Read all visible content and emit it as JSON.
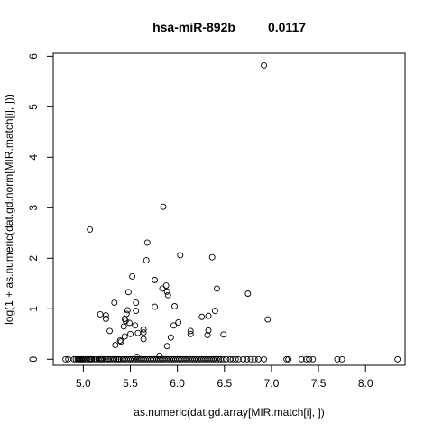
{
  "chart_data": {
    "type": "scatter",
    "title_left": "hsa-miR-892b",
    "title_right": "0.0117",
    "xlabel": "as.numeric(dat.gd.array[MIR.match[i], ])",
    "ylabel": "log(1 + as.numeric(dat.gd.norm[MIR.match[i], ]))",
    "xlim": [
      4.68,
      8.42
    ],
    "ylim": [
      -0.12,
      6.06
    ],
    "xticks": [
      5.0,
      5.5,
      6.0,
      6.5,
      7.0,
      7.5,
      8.0
    ],
    "xtick_labels": [
      "5.0",
      "5.5",
      "6.0",
      "6.5",
      "7.0",
      "7.5",
      "8.0"
    ],
    "yticks": [
      0,
      1,
      2,
      3,
      4,
      5,
      6
    ],
    "ytick_labels": [
      "0",
      "1",
      "2",
      "3",
      "4",
      "5",
      "6"
    ],
    "grid": false,
    "marker": "open-circle",
    "point_color": "#000000",
    "points_nonzero": [
      [
        6.92,
        5.82
      ],
      [
        5.07,
        2.57
      ],
      [
        5.85,
        3.02
      ],
      [
        5.68,
        2.31
      ],
      [
        6.03,
        2.06
      ],
      [
        6.37,
        2.02
      ],
      [
        5.67,
        1.96
      ],
      [
        5.52,
        1.64
      ],
      [
        5.76,
        1.57
      ],
      [
        5.88,
        1.46
      ],
      [
        5.84,
        1.4
      ],
      [
        5.89,
        1.34
      ],
      [
        5.48,
        1.33
      ],
      [
        6.42,
        1.4
      ],
      [
        6.75,
        1.3
      ],
      [
        5.9,
        1.27
      ],
      [
        5.33,
        1.12
      ],
      [
        5.56,
        1.12
      ],
      [
        5.97,
        1.05
      ],
      [
        5.76,
        1.04
      ],
      [
        5.47,
        0.97
      ],
      [
        5.56,
        0.96
      ],
      [
        6.4,
        0.96
      ],
      [
        5.18,
        0.89
      ],
      [
        5.24,
        0.87
      ],
      [
        5.46,
        0.9
      ],
      [
        6.26,
        0.84
      ],
      [
        6.33,
        0.86
      ],
      [
        5.44,
        0.8
      ],
      [
        5.24,
        0.8
      ],
      [
        6.96,
        0.79
      ],
      [
        5.45,
        0.76
      ],
      [
        5.49,
        0.72
      ],
      [
        6.01,
        0.73
      ],
      [
        5.96,
        0.67
      ],
      [
        5.55,
        0.67
      ],
      [
        5.43,
        0.65
      ],
      [
        5.64,
        0.59
      ],
      [
        6.14,
        0.56
      ],
      [
        6.33,
        0.57
      ],
      [
        5.28,
        0.56
      ],
      [
        5.64,
        0.53
      ],
      [
        5.5,
        0.5
      ],
      [
        5.58,
        0.52
      ],
      [
        6.14,
        0.5
      ],
      [
        6.49,
        0.49
      ],
      [
        6.32,
        0.48
      ],
      [
        5.44,
        0.45
      ],
      [
        5.93,
        0.43
      ],
      [
        5.64,
        0.4
      ],
      [
        5.39,
        0.37
      ],
      [
        5.4,
        0.35
      ],
      [
        5.34,
        0.28
      ],
      [
        5.89,
        0.26
      ],
      [
        5.81,
        0.07
      ],
      [
        5.57,
        0.05
      ]
    ],
    "points_zero_x": [
      4.81,
      4.84,
      4.9,
      4.92,
      4.94,
      4.95,
      4.96,
      4.97,
      4.98,
      4.99,
      5.0,
      5.02,
      5.04,
      5.06,
      5.07,
      5.08,
      5.09,
      5.11,
      5.14,
      5.16,
      5.18,
      5.19,
      5.2,
      5.22,
      5.24,
      5.26,
      5.27,
      5.29,
      5.31,
      5.33,
      5.35,
      5.37,
      5.38,
      5.4,
      5.42,
      5.44,
      5.46,
      5.48,
      5.5,
      5.52,
      5.54,
      5.56,
      5.58,
      5.6,
      5.62,
      5.64,
      5.66,
      5.68,
      5.7,
      5.72,
      5.74,
      5.76,
      5.78,
      5.8,
      5.82,
      5.84,
      5.86,
      5.88,
      5.9,
      5.92,
      5.94,
      5.96,
      5.98,
      6.0,
      6.02,
      6.04,
      6.06,
      6.08,
      6.1,
      6.12,
      6.14,
      6.16,
      6.18,
      6.2,
      6.22,
      6.24,
      6.26,
      6.28,
      6.3,
      6.32,
      6.34,
      6.36,
      6.38,
      6.4,
      6.42,
      6.44,
      6.46,
      6.49,
      6.52,
      6.56,
      6.59,
      6.62,
      6.65,
      6.7,
      6.74,
      6.78,
      6.82,
      6.86,
      6.92,
      7.16,
      7.18,
      7.32,
      7.37,
      7.4,
      7.44,
      7.7,
      7.75,
      8.34
    ]
  }
}
